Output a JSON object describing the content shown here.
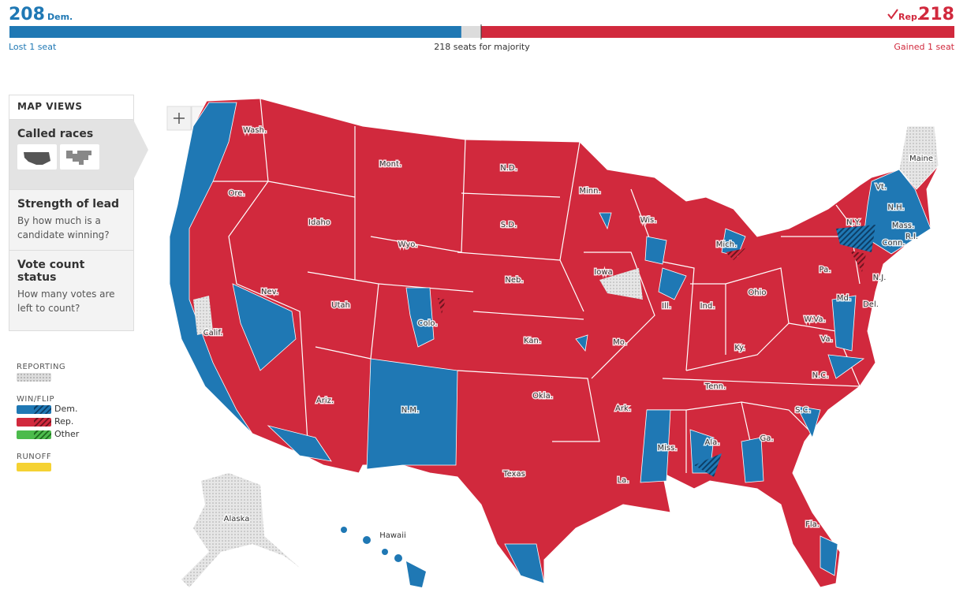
{
  "header": {
    "dem": {
      "seats": 208,
      "label": "Dem.",
      "note": "Lost 1 seat",
      "color": "#1f78b4"
    },
    "rep": {
      "seats": 218,
      "label": "Rep.",
      "note": "Gained 1 seat",
      "color": "#d1293d"
    },
    "majority_note": "218 seats for majority",
    "xlim": [
      0,
      435
    ]
  },
  "map_views": {
    "title": "MAP VIEWS",
    "items": [
      {
        "title": "Called races"
      },
      {
        "title": "Strength of lead",
        "description": "By how much is a candidate winning?"
      },
      {
        "title": "Vote count status",
        "description": "How many votes are left to count?"
      }
    ]
  },
  "legend": {
    "reporting": "REPORTING",
    "win_flip": {
      "title": "WIN/FLIP",
      "items": [
        "Dem.",
        "Rep.",
        "Other"
      ]
    },
    "runoff": "RUNOFF"
  },
  "map": {
    "state_labels": [
      "Wash.",
      "Ore.",
      "Calif.",
      "Nev.",
      "Idaho",
      "Mont.",
      "Wyo.",
      "Utah",
      "Colo.",
      "Ariz.",
      "N.M.",
      "N.D.",
      "S.D.",
      "Neb.",
      "Kan.",
      "Okla.",
      "Texas",
      "Minn.",
      "Iowa",
      "Mo.",
      "Ark.",
      "La.",
      "Wis.",
      "Ill.",
      "Miss.",
      "Mich.",
      "Ind.",
      "Ky.",
      "Tenn.",
      "Ala.",
      "Ohio",
      "Ga.",
      "Fla.",
      "S.C.",
      "N.C.",
      "Va.",
      "W.Va.",
      "Pa.",
      "N.Y.",
      "Md.",
      "Del.",
      "N.J.",
      "Conn.",
      "R.I.",
      "Mass.",
      "N.H.",
      "Vt.",
      "Maine",
      "Alaska",
      "Hawaii"
    ]
  }
}
